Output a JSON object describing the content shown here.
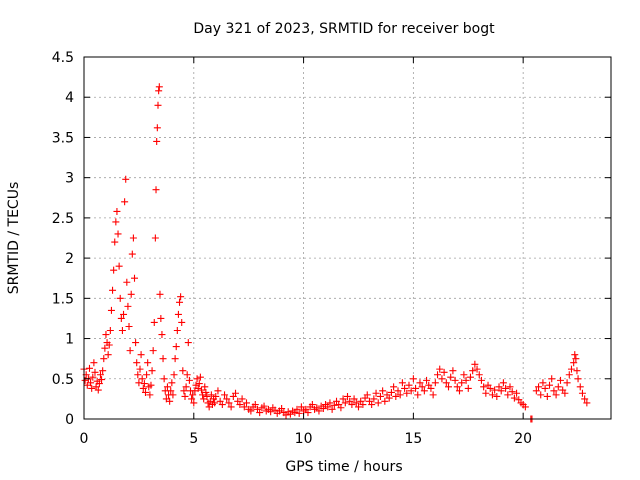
{
  "chart_data": {
    "type": "scatter",
    "title": "Day 321 of 2023, SRMTID for receiver bogt",
    "xlabel": "GPS time / hours",
    "ylabel": "SRMTID / TECUs",
    "xlim": [
      0,
      24
    ],
    "ylim": [
      0,
      4.5
    ],
    "x_ticks": [
      0,
      5,
      10,
      15,
      20
    ],
    "x_tick_labels": [
      "0",
      "5",
      "10",
      "15",
      "20"
    ],
    "y_ticks": [
      0,
      0.5,
      1,
      1.5,
      2,
      2.5,
      3,
      3.5,
      4,
      4.5
    ],
    "y_tick_labels": [
      "0",
      "0.5",
      "1",
      "1.5",
      "2",
      "2.5",
      "3",
      "3.5",
      "4",
      "4.5"
    ],
    "grid": true,
    "marker": "+",
    "color": "#ff0000",
    "series": [
      {
        "name": "SRMTID",
        "points": [
          [
            0.0,
            0.62
          ],
          [
            0.05,
            0.48
          ],
          [
            0.1,
            0.55
          ],
          [
            0.15,
            0.42
          ],
          [
            0.2,
            0.5
          ],
          [
            0.25,
            0.63
          ],
          [
            0.3,
            0.45
          ],
          [
            0.35,
            0.38
          ],
          [
            0.4,
            0.52
          ],
          [
            0.45,
            0.7
          ],
          [
            0.5,
            0.58
          ],
          [
            0.55,
            0.4
          ],
          [
            0.6,
            0.47
          ],
          [
            0.65,
            0.36
          ],
          [
            0.7,
            0.44
          ],
          [
            0.75,
            0.55
          ],
          [
            0.8,
            0.49
          ],
          [
            0.85,
            0.6
          ],
          [
            0.9,
            0.75
          ],
          [
            0.95,
            0.88
          ],
          [
            1.0,
            1.05
          ],
          [
            1.05,
            0.95
          ],
          [
            1.1,
            0.8
          ],
          [
            1.15,
            0.92
          ],
          [
            1.2,
            1.1
          ],
          [
            1.25,
            1.35
          ],
          [
            1.3,
            1.6
          ],
          [
            1.35,
            1.85
          ],
          [
            1.4,
            2.2
          ],
          [
            1.45,
            2.45
          ],
          [
            1.5,
            2.58
          ],
          [
            1.55,
            2.3
          ],
          [
            1.6,
            1.9
          ],
          [
            1.65,
            1.5
          ],
          [
            1.7,
            1.25
          ],
          [
            1.75,
            1.1
          ],
          [
            1.8,
            1.3
          ],
          [
            1.85,
            2.7
          ],
          [
            1.9,
            2.98
          ],
          [
            1.95,
            1.7
          ],
          [
            2.0,
            1.4
          ],
          [
            2.05,
            1.15
          ],
          [
            2.1,
            0.85
          ],
          [
            2.15,
            1.55
          ],
          [
            2.2,
            2.05
          ],
          [
            2.25,
            2.25
          ],
          [
            2.3,
            1.75
          ],
          [
            2.35,
            0.95
          ],
          [
            2.4,
            0.7
          ],
          [
            2.45,
            0.55
          ],
          [
            2.5,
            0.45
          ],
          [
            2.55,
            0.62
          ],
          [
            2.6,
            0.8
          ],
          [
            2.65,
            0.5
          ],
          [
            2.7,
            0.38
          ],
          [
            2.75,
            0.44
          ],
          [
            2.8,
            0.33
          ],
          [
            2.85,
            0.55
          ],
          [
            2.9,
            0.7
          ],
          [
            2.95,
            0.4
          ],
          [
            3.0,
            0.3
          ],
          [
            3.05,
            0.42
          ],
          [
            3.1,
            0.6
          ],
          [
            3.15,
            0.85
          ],
          [
            3.2,
            1.2
          ],
          [
            3.25,
            2.25
          ],
          [
            3.28,
            2.85
          ],
          [
            3.31,
            3.45
          ],
          [
            3.34,
            3.62
          ],
          [
            3.37,
            3.9
          ],
          [
            3.4,
            4.08
          ],
          [
            3.43,
            4.13
          ],
          [
            3.46,
            1.55
          ],
          [
            3.5,
            1.25
          ],
          [
            3.55,
            1.05
          ],
          [
            3.6,
            0.75
          ],
          [
            3.65,
            0.5
          ],
          [
            3.7,
            0.35
          ],
          [
            3.75,
            0.25
          ],
          [
            3.8,
            0.4
          ],
          [
            3.85,
            0.3
          ],
          [
            3.9,
            0.22
          ],
          [
            3.95,
            0.35
          ],
          [
            4.0,
            0.45
          ],
          [
            4.05,
            0.3
          ],
          [
            4.1,
            0.55
          ],
          [
            4.15,
            0.75
          ],
          [
            4.2,
            0.9
          ],
          [
            4.25,
            1.1
          ],
          [
            4.3,
            1.3
          ],
          [
            4.35,
            1.45
          ],
          [
            4.4,
            1.52
          ],
          [
            4.45,
            1.2
          ],
          [
            4.5,
            0.6
          ],
          [
            4.55,
            0.35
          ],
          [
            4.6,
            0.28
          ],
          [
            4.65,
            0.4
          ],
          [
            4.7,
            0.55
          ],
          [
            4.75,
            0.95
          ],
          [
            4.8,
            0.48
          ],
          [
            4.85,
            0.35
          ],
          [
            4.9,
            0.25
          ],
          [
            4.95,
            0.3
          ],
          [
            5.0,
            0.2
          ],
          [
            5.05,
            0.35
          ],
          [
            5.1,
            0.42
          ],
          [
            5.15,
            0.5
          ],
          [
            5.2,
            0.38
          ],
          [
            5.25,
            0.44
          ],
          [
            5.3,
            0.52
          ],
          [
            5.35,
            0.36
          ],
          [
            5.4,
            0.3
          ],
          [
            5.45,
            0.25
          ],
          [
            5.5,
            0.4
          ],
          [
            5.55,
            0.33
          ],
          [
            5.6,
            0.28
          ],
          [
            5.65,
            0.2
          ],
          [
            5.7,
            0.15
          ],
          [
            5.75,
            0.22
          ],
          [
            5.8,
            0.3
          ],
          [
            5.85,
            0.18
          ],
          [
            5.9,
            0.25
          ],
          [
            5.95,
            0.2
          ],
          [
            6.0,
            0.28
          ],
          [
            6.1,
            0.35
          ],
          [
            6.2,
            0.22
          ],
          [
            6.3,
            0.18
          ],
          [
            6.4,
            0.3
          ],
          [
            6.5,
            0.25
          ],
          [
            6.6,
            0.2
          ],
          [
            6.7,
            0.15
          ],
          [
            6.8,
            0.28
          ],
          [
            6.9,
            0.32
          ],
          [
            7.0,
            0.22
          ],
          [
            7.1,
            0.18
          ],
          [
            7.2,
            0.25
          ],
          [
            7.3,
            0.15
          ],
          [
            7.4,
            0.2
          ],
          [
            7.5,
            0.12
          ],
          [
            7.6,
            0.1
          ],
          [
            7.7,
            0.15
          ],
          [
            7.8,
            0.18
          ],
          [
            7.9,
            0.12
          ],
          [
            8.0,
            0.08
          ],
          [
            8.1,
            0.14
          ],
          [
            8.2,
            0.16
          ],
          [
            8.3,
            0.1
          ],
          [
            8.4,
            0.12
          ],
          [
            8.5,
            0.09
          ],
          [
            8.6,
            0.14
          ],
          [
            8.7,
            0.11
          ],
          [
            8.8,
            0.07
          ],
          [
            8.9,
            0.1
          ],
          [
            9.0,
            0.13
          ],
          [
            9.1,
            0.08
          ],
          [
            9.2,
            0.05
          ],
          [
            9.3,
            0.09
          ],
          [
            9.4,
            0.06
          ],
          [
            9.5,
            0.1
          ],
          [
            9.6,
            0.08
          ],
          [
            9.7,
            0.12
          ],
          [
            9.8,
            0.07
          ],
          [
            9.9,
            0.15
          ],
          [
            10.0,
            0.1
          ],
          [
            10.1,
            0.12
          ],
          [
            10.2,
            0.08
          ],
          [
            10.3,
            0.15
          ],
          [
            10.4,
            0.18
          ],
          [
            10.5,
            0.12
          ],
          [
            10.6,
            0.14
          ],
          [
            10.7,
            0.1
          ],
          [
            10.8,
            0.16
          ],
          [
            10.9,
            0.13
          ],
          [
            11.0,
            0.18
          ],
          [
            11.1,
            0.15
          ],
          [
            11.2,
            0.2
          ],
          [
            11.3,
            0.12
          ],
          [
            11.4,
            0.17
          ],
          [
            11.5,
            0.22
          ],
          [
            11.6,
            0.18
          ],
          [
            11.7,
            0.14
          ],
          [
            11.8,
            0.25
          ],
          [
            11.9,
            0.2
          ],
          [
            12.0,
            0.28
          ],
          [
            12.1,
            0.22
          ],
          [
            12.2,
            0.18
          ],
          [
            12.3,
            0.25
          ],
          [
            12.4,
            0.2
          ],
          [
            12.5,
            0.15
          ],
          [
            12.6,
            0.22
          ],
          [
            12.7,
            0.18
          ],
          [
            12.8,
            0.26
          ],
          [
            12.9,
            0.3
          ],
          [
            13.0,
            0.22
          ],
          [
            13.1,
            0.18
          ],
          [
            13.2,
            0.25
          ],
          [
            13.3,
            0.32
          ],
          [
            13.4,
            0.2
          ],
          [
            13.5,
            0.28
          ],
          [
            13.6,
            0.35
          ],
          [
            13.7,
            0.22
          ],
          [
            13.8,
            0.3
          ],
          [
            13.9,
            0.26
          ],
          [
            14.0,
            0.33
          ],
          [
            14.1,
            0.4
          ],
          [
            14.2,
            0.28
          ],
          [
            14.3,
            0.35
          ],
          [
            14.4,
            0.3
          ],
          [
            14.5,
            0.45
          ],
          [
            14.6,
            0.38
          ],
          [
            14.7,
            0.32
          ],
          [
            14.8,
            0.42
          ],
          [
            14.9,
            0.35
          ],
          [
            15.0,
            0.5
          ],
          [
            15.1,
            0.38
          ],
          [
            15.2,
            0.3
          ],
          [
            15.3,
            0.45
          ],
          [
            15.4,
            0.4
          ],
          [
            15.5,
            0.35
          ],
          [
            15.6,
            0.48
          ],
          [
            15.7,
            0.42
          ],
          [
            15.8,
            0.38
          ],
          [
            15.9,
            0.3
          ],
          [
            16.0,
            0.45
          ],
          [
            16.1,
            0.55
          ],
          [
            16.2,
            0.62
          ],
          [
            16.3,
            0.5
          ],
          [
            16.4,
            0.58
          ],
          [
            16.5,
            0.45
          ],
          [
            16.6,
            0.4
          ],
          [
            16.7,
            0.52
          ],
          [
            16.8,
            0.6
          ],
          [
            16.9,
            0.48
          ],
          [
            17.0,
            0.4
          ],
          [
            17.1,
            0.35
          ],
          [
            17.2,
            0.45
          ],
          [
            17.3,
            0.55
          ],
          [
            17.4,
            0.48
          ],
          [
            17.5,
            0.38
          ],
          [
            17.6,
            0.52
          ],
          [
            17.7,
            0.6
          ],
          [
            17.8,
            0.68
          ],
          [
            17.9,
            0.62
          ],
          [
            18.0,
            0.55
          ],
          [
            18.1,
            0.48
          ],
          [
            18.2,
            0.4
          ],
          [
            18.3,
            0.32
          ],
          [
            18.4,
            0.42
          ],
          [
            18.5,
            0.38
          ],
          [
            18.6,
            0.3
          ],
          [
            18.7,
            0.36
          ],
          [
            18.8,
            0.28
          ],
          [
            18.9,
            0.4
          ],
          [
            19.0,
            0.35
          ],
          [
            19.1,
            0.45
          ],
          [
            19.2,
            0.38
          ],
          [
            19.3,
            0.3
          ],
          [
            19.4,
            0.4
          ],
          [
            19.5,
            0.34
          ],
          [
            19.6,
            0.26
          ],
          [
            19.7,
            0.32
          ],
          [
            19.8,
            0.24
          ],
          [
            19.9,
            0.2
          ],
          [
            20.0,
            0.18
          ],
          [
            20.1,
            0.15
          ],
          [
            20.35,
            0.0
          ],
          [
            20.4,
            0.0
          ],
          [
            20.6,
            0.35
          ],
          [
            20.7,
            0.4
          ],
          [
            20.8,
            0.3
          ],
          [
            20.9,
            0.45
          ],
          [
            21.0,
            0.38
          ],
          [
            21.1,
            0.28
          ],
          [
            21.2,
            0.42
          ],
          [
            21.3,
            0.5
          ],
          [
            21.4,
            0.35
          ],
          [
            21.5,
            0.3
          ],
          [
            21.6,
            0.4
          ],
          [
            21.7,
            0.48
          ],
          [
            21.8,
            0.36
          ],
          [
            21.9,
            0.32
          ],
          [
            22.0,
            0.45
          ],
          [
            22.1,
            0.55
          ],
          [
            22.2,
            0.62
          ],
          [
            22.3,
            0.7
          ],
          [
            22.35,
            0.8
          ],
          [
            22.4,
            0.75
          ],
          [
            22.45,
            0.6
          ],
          [
            22.5,
            0.5
          ],
          [
            22.6,
            0.4
          ],
          [
            22.7,
            0.32
          ],
          [
            22.8,
            0.25
          ],
          [
            22.9,
            0.2
          ]
        ]
      }
    ]
  }
}
